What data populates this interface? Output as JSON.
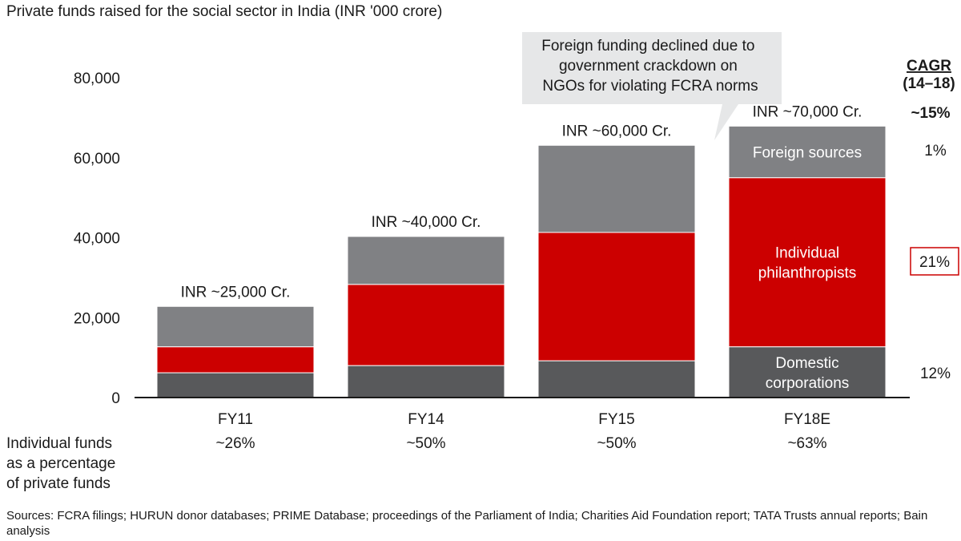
{
  "chart_data": {
    "type": "bar",
    "stacked": true,
    "title": "Private funds raised for the social sector in India (INR '000 crore)",
    "categories": [
      "FY11",
      "FY14",
      "FY15",
      "FY18E"
    ],
    "ylim": [
      0,
      80000
    ],
    "yticks": [
      "0",
      "20,000",
      "40,000",
      "60,000",
      "80,000"
    ],
    "ytick_values": [
      0,
      20000,
      40000,
      60000,
      80000
    ],
    "grid": false,
    "series": [
      {
        "name": "Domestic corporations",
        "color": "#58595b",
        "values": [
          6200,
          8000,
          9200,
          12700
        ]
      },
      {
        "name": "Individual philanthropists",
        "color": "#cc0000",
        "values": [
          6500,
          20300,
          32100,
          42300
        ]
      },
      {
        "name": "Foreign sources",
        "color": "#808184",
        "values": [
          10100,
          12000,
          21800,
          12900
        ]
      }
    ],
    "total_labels": [
      "INR ~25,000 Cr.",
      "INR ~40,000 Cr.",
      "INR ~60,000 Cr.",
      "INR ~70,000 Cr."
    ],
    "row_label": [
      "Individual funds",
      "as a percentage",
      "of private funds"
    ],
    "row_values": [
      "~26%",
      "~50%",
      "~50%",
      "~63%"
    ],
    "cagr": {
      "title": "CAGR",
      "subtitle": "(14–18)",
      "total": "~15%",
      "values": [
        "1%",
        "21%",
        "12%"
      ],
      "highlighted_index": 1
    },
    "annotation": {
      "lines": [
        "Foreign funding declined due to",
        "government crackdown on",
        "NGOs for violating FCRA norms"
      ],
      "target": "FY18E"
    }
  },
  "footnote": "Sources: FCRA filings; HURUN donor databases; PRIME Database; proceedings of the Parliament of India; Charities Aid Foundation report; TATA Trusts annual reports; Bain analysis"
}
